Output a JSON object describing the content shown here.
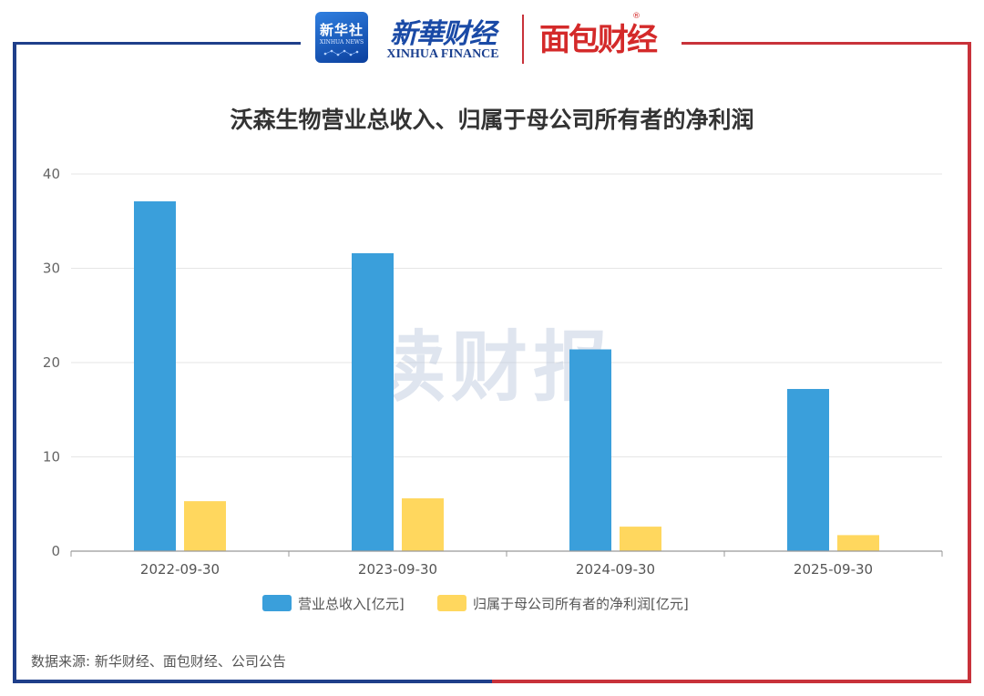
{
  "header": {
    "xinhua_badge_text": "新华社",
    "xinhua_badge_sub": "XINHUA NEWS",
    "xinhua_finance_cn": "新華财经",
    "xinhua_finance_en": "XINHUA FINANCE",
    "mianbao_logo": "面包财经",
    "registered_mark": "®"
  },
  "watermark": "读财报",
  "source": "数据来源: 新华财经、面包财经、公司公告",
  "colors": {
    "series_revenue": "#3a9fdb",
    "series_profit": "#ffd75e",
    "frame_blue": "#1f3f8a",
    "frame_red": "#c8323a",
    "grid": "#e6e6e6"
  },
  "chart_data": {
    "type": "bar",
    "title": "沃森生物营业总收入、归属于母公司所有者的净利润",
    "xlabel": "",
    "ylabel": "",
    "categories": [
      "2022-09-30",
      "2023-09-30",
      "2024-09-30",
      "2025-09-30"
    ],
    "series": [
      {
        "name": "营业总收入[亿元]",
        "values": [
          37.1,
          31.6,
          21.4,
          17.2
        ]
      },
      {
        "name": "归属于母公司所有者的净利润[亿元]",
        "values": [
          5.3,
          5.6,
          2.6,
          1.7
        ]
      }
    ],
    "ylim": [
      0,
      40
    ],
    "yticks": [
      0,
      10,
      20,
      30,
      40
    ],
    "grid": true,
    "legend_position": "bottom"
  }
}
